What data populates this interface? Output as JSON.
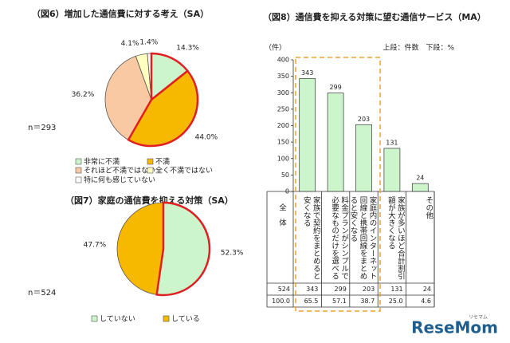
{
  "chart_data": [
    {
      "type": "pie",
      "title": "（図6）増加した通信費に対する考え（SA）",
      "n_label": "n＝293",
      "categories": [
        "非常に不満",
        "不満",
        "それほど不満ではない",
        "全く不満ではない",
        "特に何も感じていない"
      ],
      "values": [
        14.3,
        44.0,
        36.2,
        4.1,
        1.4
      ],
      "value_labels": [
        "14.3%",
        "44.0%",
        "36.2%",
        "4.1%",
        "1.4%"
      ],
      "colors": [
        "#ccf5cc",
        "#f7b800",
        "#f9c9a3",
        "#ffffc0",
        "#ffffff"
      ],
      "edge_colors": [
        "#e02020",
        "#e02020",
        "#555555",
        "#555555",
        "#555555"
      ]
    },
    {
      "type": "pie",
      "title": "（図7）家庭の通信費を抑える対策（SA）",
      "n_label": "n＝524",
      "categories": [
        "していない",
        "している"
      ],
      "values": [
        52.3,
        47.7
      ],
      "value_labels": [
        "52.3%",
        "47.7%"
      ],
      "colors": [
        "#ccf5cc",
        "#f7b800"
      ],
      "edge_colors": [
        "#e02020",
        "#555555"
      ]
    },
    {
      "type": "bar",
      "title": "（図8）通信費を抑える対策に望む通信サービス（MA）",
      "y_label": "（件）",
      "note": "上段：件数　下段：%",
      "categories": [
        "家族で契約をまとめると安くなる",
        "料金プランがシンプルで必要なものだけを選べる",
        "家庭内のインターネット回線と携帯回線をまとめると安くなる",
        "家族が多いほど合計割引額が大きくなる",
        "その他"
      ],
      "values": [
        343,
        299,
        203,
        131,
        24
      ],
      "color": "#ccf5cc",
      "ylim": [
        0,
        400
      ],
      "yticks": [
        0,
        50,
        100,
        150,
        200,
        250,
        300,
        350,
        400
      ],
      "table": {
        "row_header": "全　体",
        "total": 524,
        "percent_labels": [
          "100.0",
          "65.5",
          "57.1",
          "38.7",
          "25.0",
          "4.6"
        ]
      }
    }
  ],
  "watermark": {
    "sub": "リセマム",
    "main": "ReseMom"
  }
}
